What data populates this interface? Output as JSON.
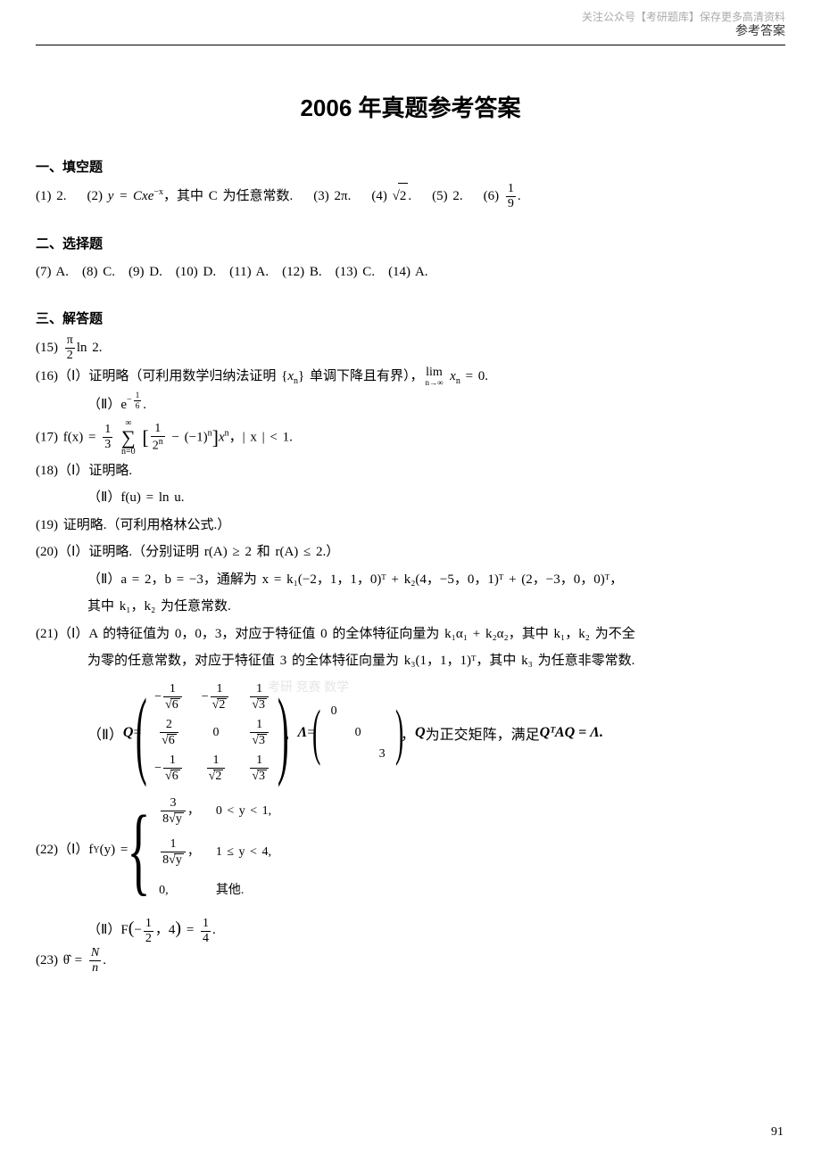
{
  "watermark_top": "关注公众号【考研题库】保存更多高清资料",
  "header_right": "参考答案",
  "title": "2006 年真题参考答案",
  "section1_heading": "一、填空题",
  "fill_line_1a": "(1) 2.",
  "fill_line_1b": "(2) ",
  "fill_line_1b_eq": "y = Cxe",
  "fill_line_1b_exp": "−x",
  "fill_line_1b_tail": "，其中 C 为任意常数.",
  "fill_line_1c": "(3) 2π.",
  "fill_line_1d_pre": "(4) ",
  "fill_line_1d_val": "2",
  "fill_line_1d_post": ".",
  "fill_line_1e": "(5) 2.",
  "fill_line_1f_pre": "(6) ",
  "fill_line_1f_num": "1",
  "fill_line_1f_den": "9",
  "fill_line_1f_post": ".",
  "section2_heading": "二、选择题",
  "choice_line": "(7) A.　(8) C.　(9) D.　(10) D.　(11) A.　(12) B.　(13) C.　(14) A.",
  "section3_heading": "三、解答题",
  "q15_pre": "(15) ",
  "q15_num": "π",
  "q15_den": "2",
  "q15_tail": "ln 2.",
  "q16_1_pre": "(16)（Ⅰ）证明略（可利用数学归纳法证明 {",
  "q16_1_xn": "x",
  "q16_1_n": "n",
  "q16_1_mid": "} 单调下降且有界），",
  "q16_1_lim_top": "lim",
  "q16_1_lim_bot": "n→∞",
  "q16_1_tail": " = 0.",
  "q16_2_pre": "（Ⅱ）e",
  "q16_2_exp_num": "1",
  "q16_2_exp_den": "6",
  "q16_2_tail": ".",
  "q17_pre": "(17) f(x) = ",
  "q17_frac1_num": "1",
  "q17_frac1_den": "3",
  "q17_sum_top": "∞",
  "q17_sum_bot": "n=0",
  "q17_frac2_num": "1",
  "q17_frac2_den": "2",
  "q17_frac2_den_sup": "n",
  "q17_mid": " − (−1)",
  "q17_mid_sup": "n",
  "q17_x": "x",
  "q17_x_sup": "n",
  "q17_tail": "，| x | < 1.",
  "q18_1": "(18)（Ⅰ）证明略.",
  "q18_2": "（Ⅱ）f(u) = ln u.",
  "q19": "(19) 证明略.（可利用格林公式.）",
  "q20_1": "(20)（Ⅰ）证明略.（分别证明 r(A) ≥ 2 和 r(A) ≤ 2.）",
  "q20_2": "（Ⅱ）a = 2，b = −3，通解为 x = k₁(−2，1，1，0)ᵀ + k₂(4，−5，0，1)ᵀ + (2，−3，0，0)ᵀ，",
  "q20_3": "其中 k₁，k₂ 为任意常数.",
  "q21_1": "(21)（Ⅰ）A 的特征值为 0，0，3，对应于特征值 0 的全体特征向量为 k₁α₁ + k₂α₂，其中 k₁，k₂ 为不全",
  "q21_2": "为零的任意常数，对应于特征值 3 的全体特征向量为 k₃(1，1，1)ᵀ，其中 k₃ 为任意非零常数.",
  "q21_3_pre": "（Ⅱ）",
  "q21_3_Q": "Q",
  "q21_3_eq": " = ",
  "q21_matrix": {
    "rows": [
      [
        "−1/√6",
        "−1/√2",
        "1/√3"
      ],
      [
        "2/√6",
        "0",
        "1/√3"
      ],
      [
        "−1/√6",
        "1/√2",
        "1/√3"
      ]
    ]
  },
  "q21_3_mid": "，",
  "q21_3_L": "Λ",
  "q21_lambda": {
    "rows": [
      [
        "0",
        " ",
        " "
      ],
      [
        " ",
        "0",
        " "
      ],
      [
        " ",
        " ",
        "3"
      ]
    ]
  },
  "q21_3_tail1": "，",
  "q21_3_tail2": " 为正交矩阵，满足 ",
  "q21_3_tail3": "Qᵀ",
  "q21_3_tail4": "AQ = Λ.",
  "q22_pre": "(22)（Ⅰ）f",
  "q22_sub": "Y",
  "q22_mid": "(y) = ",
  "q22_piece1_num": "3",
  "q22_piece1_den_pre": "8",
  "q22_piece1_den_sqrt": "y",
  "q22_piece1_cond": "0 < y < 1,",
  "q22_piece2_num": "1",
  "q22_piece2_den_pre": "8",
  "q22_piece2_den_sqrt": "y",
  "q22_piece2_cond": "1 ≤ y < 4,",
  "q22_piece3_val": "0,",
  "q22_piece3_cond": "其他.",
  "q22_2_pre": "（Ⅱ）F",
  "q22_2_arg_num1": "1",
  "q22_2_arg_den1": "2",
  "q22_2_comma": "，4",
  "q22_2_eq": " = ",
  "q22_2_num": "1",
  "q22_2_den": "4",
  "q22_2_tail": ".",
  "q23_pre": "(23) θ̂ = ",
  "q23_num": "N",
  "q23_den": "n",
  "q23_tail": ".",
  "mid_watermark": "考研 竞赛 数学",
  "page_number": "91"
}
